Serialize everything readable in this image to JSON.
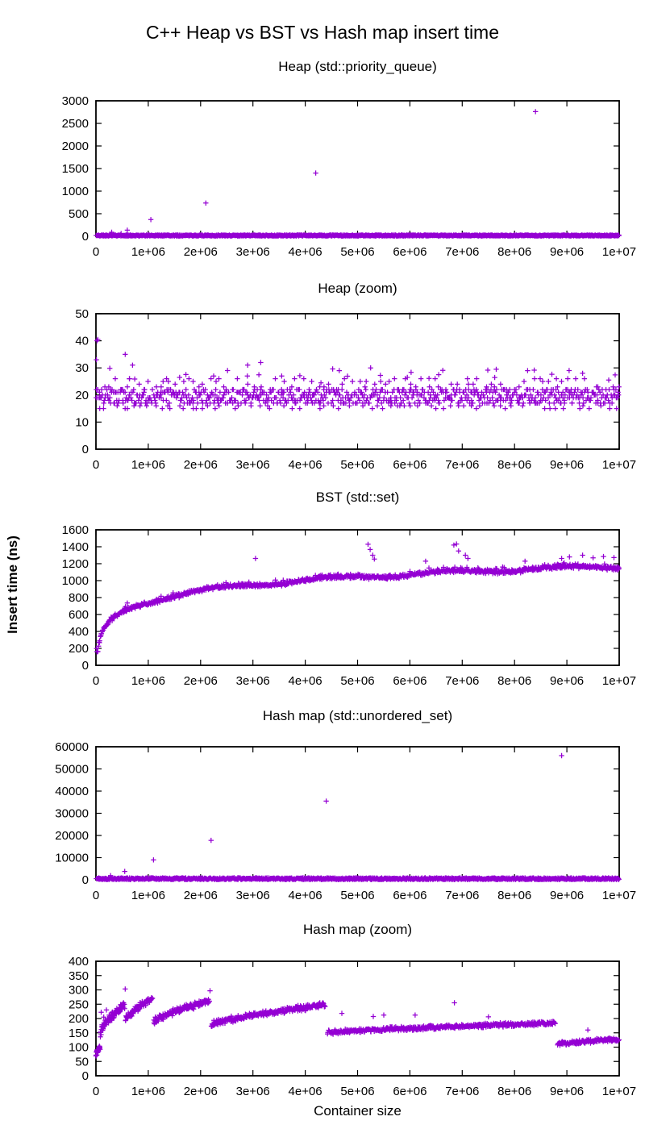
{
  "figure": {
    "title": "C++ Heap vs BST vs Hash map insert time",
    "xlabel": "Container size",
    "ylabel": "Insert time (ns)"
  },
  "style": {
    "point_color": "#9400D3",
    "axis_color": "#000000"
  },
  "axis": {
    "x_ticks": [
      {
        "v": 0,
        "label": "0"
      },
      {
        "v": 1000000,
        "label": "1e+06"
      },
      {
        "v": 2000000,
        "label": "2e+06"
      },
      {
        "v": 3000000,
        "label": "3e+06"
      },
      {
        "v": 4000000,
        "label": "4e+06"
      },
      {
        "v": 5000000,
        "label": "5e+06"
      },
      {
        "v": 6000000,
        "label": "6e+06"
      },
      {
        "v": 7000000,
        "label": "7e+06"
      },
      {
        "v": 8000000,
        "label": "8e+06"
      },
      {
        "v": 9000000,
        "label": "9e+06"
      },
      {
        "v": 10000000,
        "label": "1e+07"
      }
    ]
  },
  "chart_data": [
    {
      "id": "heap-main",
      "type": "scatter",
      "title": "Heap (std::priority_queue)",
      "xlim": [
        0,
        10000000
      ],
      "ylim": [
        0,
        3000
      ],
      "yticks": [
        [
          0,
          "0"
        ],
        [
          500,
          "500"
        ],
        [
          1000,
          "1000"
        ],
        [
          1500,
          "1500"
        ],
        [
          2000,
          "2000"
        ],
        [
          2500,
          "2500"
        ],
        [
          3000,
          "3000"
        ]
      ],
      "series": [
        {
          "kind": "band",
          "name": "baseline-band",
          "x0": 0,
          "x1": 10000000,
          "ymin": 5,
          "ymax": 30,
          "n": 1150,
          "seed": 11
        },
        {
          "kind": "points",
          "name": "outliers",
          "points": [
            [
              300000,
              90
            ],
            [
              480000,
              60
            ],
            [
              600000,
              135
            ],
            [
              1050000,
              370
            ],
            [
              2100000,
              735
            ],
            [
              4200000,
              1400
            ],
            [
              8400000,
              2760
            ]
          ]
        }
      ]
    },
    {
      "id": "heap-zoom",
      "type": "scatter",
      "title": "Heap (zoom)",
      "xlim": [
        0,
        10000000
      ],
      "ylim": [
        0,
        50
      ],
      "yticks": [
        [
          0,
          "0"
        ],
        [
          10,
          "10"
        ],
        [
          20,
          "20"
        ],
        [
          30,
          "30"
        ],
        [
          40,
          "40"
        ],
        [
          50,
          "50"
        ]
      ],
      "series": [
        {
          "kind": "band",
          "name": "main-band",
          "x0": 0,
          "x1": 10000000,
          "ymin": 16.6,
          "ymax": 22.4,
          "n": 660,
          "seed": 21,
          "int_y": true
        },
        {
          "kind": "band",
          "name": "low-band",
          "x0": 0,
          "x1": 10000000,
          "ymin": 14.6,
          "ymax": 17.4,
          "n": 85,
          "seed": 22,
          "int_y": true
        },
        {
          "kind": "band",
          "name": "high-band",
          "x0": 0,
          "x1": 10000000,
          "ymin": 21.6,
          "ymax": 26.4,
          "n": 95,
          "seed": 23,
          "int_y": true
        },
        {
          "kind": "band",
          "name": "sparse-high",
          "x0": 100000,
          "x1": 10000000,
          "ymin": 25.5,
          "ymax": 30,
          "n": 20,
          "seed": 24
        },
        {
          "kind": "points",
          "name": "outliers",
          "points": [
            [
              20000,
              40
            ],
            [
              35000,
              40.5
            ],
            [
              10000,
              33
            ],
            [
              560000,
              35
            ],
            [
              700000,
              31
            ],
            [
              640000,
              26
            ],
            [
              1600000,
              26.5
            ],
            [
              2250000,
              27
            ],
            [
              2900000,
              31
            ],
            [
              3150000,
              32
            ],
            [
              3550000,
              27
            ],
            [
              4300000,
              24.5
            ],
            [
              4650000,
              29
            ],
            [
              5250000,
              30
            ],
            [
              5950000,
              26.5
            ],
            [
              6550000,
              27.5
            ],
            [
              7100000,
              26
            ],
            [
              7650000,
              29.5
            ],
            [
              8250000,
              29
            ],
            [
              8800000,
              26
            ],
            [
              9300000,
              28
            ],
            [
              9800000,
              25.5
            ]
          ]
        }
      ]
    },
    {
      "id": "bst",
      "type": "scatter",
      "title": "BST (std::set)",
      "xlim": [
        0,
        10000000
      ],
      "ylim": [
        0,
        1600
      ],
      "yticks": [
        [
          0,
          "0"
        ],
        [
          200,
          "200"
        ],
        [
          400,
          "400"
        ],
        [
          600,
          "600"
        ],
        [
          800,
          "800"
        ],
        [
          1000,
          "1000"
        ],
        [
          1200,
          "1200"
        ],
        [
          1400,
          "1400"
        ],
        [
          1600,
          "1600"
        ]
      ],
      "series": [
        {
          "kind": "curve_log",
          "name": "log-growth",
          "xmin": 6000,
          "xmax": 10000000,
          "a": 420,
          "b": -1770,
          "clamp_min": 138,
          "noise": 30,
          "wiggle_amp": 22,
          "wiggle_period": 2200000,
          "spread_prob": 0.05,
          "spread": 55,
          "n": 1100,
          "seed": 31
        },
        {
          "kind": "points",
          "name": "spikes",
          "points": [
            [
              3050000,
              1262
            ],
            [
              5200000,
              1430
            ],
            [
              5240000,
              1368
            ],
            [
              5290000,
              1300
            ],
            [
              5320000,
              1255
            ],
            [
              6300000,
              1230
            ],
            [
              6840000,
              1420
            ],
            [
              6890000,
              1432
            ],
            [
              6930000,
              1350
            ],
            [
              7060000,
              1300
            ],
            [
              7110000,
              1262
            ],
            [
              8200000,
              1230
            ],
            [
              8900000,
              1262
            ],
            [
              9050000,
              1280
            ],
            [
              9300000,
              1300
            ],
            [
              9500000,
              1270
            ],
            [
              9700000,
              1285
            ],
            [
              9900000,
              1272
            ]
          ]
        }
      ]
    },
    {
      "id": "hash-main",
      "type": "scatter",
      "title": "Hash map (std::unordered_set)",
      "xlim": [
        0,
        10000000
      ],
      "ylim": [
        0,
        60000
      ],
      "yticks": [
        [
          0,
          "0"
        ],
        [
          10000,
          "10000"
        ],
        [
          20000,
          "20000"
        ],
        [
          30000,
          "30000"
        ],
        [
          40000,
          "40000"
        ],
        [
          50000,
          "50000"
        ],
        [
          60000,
          "60000"
        ]
      ],
      "series": [
        {
          "kind": "band",
          "name": "baseline-band",
          "x0": 0,
          "x1": 10000000,
          "ymin": 100,
          "ymax": 900,
          "n": 1150,
          "seed": 41
        },
        {
          "kind": "points",
          "name": "rehash-spikes",
          "points": [
            [
              280000,
              1900
            ],
            [
              550000,
              3800
            ],
            [
              1100000,
              9000
            ],
            [
              2200000,
              17800
            ],
            [
              4400000,
              35500
            ],
            [
              8900000,
              56000
            ]
          ]
        }
      ]
    },
    {
      "id": "hash-zoom",
      "type": "scatter",
      "title": "Hash map (zoom)",
      "xlim": [
        0,
        10000000
      ],
      "ylim": [
        0,
        400
      ],
      "yticks": [
        [
          0,
          "0"
        ],
        [
          50,
          "50"
        ],
        [
          100,
          "100"
        ],
        [
          150,
          "150"
        ],
        [
          200,
          "200"
        ],
        [
          250,
          "250"
        ],
        [
          300,
          "300"
        ],
        [
          350,
          "350"
        ],
        [
          400,
          "400"
        ]
      ],
      "series": [
        {
          "kind": "segments",
          "name": "sawtooth",
          "seed": 51,
          "rise_pow": 0.75,
          "segs": [
            [
              0,
              80000,
              75,
              100,
              12,
              22
            ],
            [
              80000,
              550000,
              150,
              252,
              18,
              85
            ],
            [
              560000,
              1080000,
              192,
              272,
              14,
              80
            ],
            [
              1100000,
              2170000,
              188,
              262,
              13,
              140
            ],
            [
              2200000,
              4380000,
              178,
              248,
              12,
              260
            ],
            [
              4420000,
              8780000,
              150,
              184,
              9,
              480
            ],
            [
              8820000,
              10000000,
              111,
              127,
              8,
              140
            ]
          ]
        },
        {
          "kind": "points",
          "name": "outliers",
          "points": [
            [
              560000,
              303
            ],
            [
              2180000,
              297
            ],
            [
              100000,
              222
            ],
            [
              150000,
              205
            ],
            [
              200000,
              230
            ],
            [
              130000,
              172
            ],
            [
              4700000,
              218
            ],
            [
              5500000,
              212
            ],
            [
              5300000,
              207
            ],
            [
              6100000,
              212
            ],
            [
              6850000,
              255
            ],
            [
              7500000,
              206
            ],
            [
              9400000,
              160
            ]
          ]
        }
      ]
    }
  ]
}
